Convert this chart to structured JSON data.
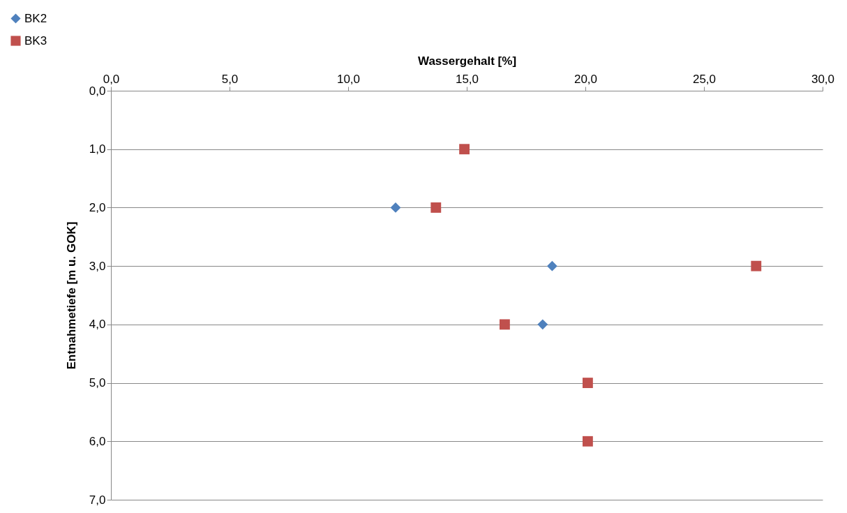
{
  "chart_data": {
    "type": "scatter",
    "xlabel": "Wassergehalt [%]",
    "ylabel": "Entnahmetiefe [m u. GOK]",
    "xlim": [
      0,
      30
    ],
    "xticks": [
      {
        "value": 0,
        "label": "0,0"
      },
      {
        "value": 5,
        "label": "5,0"
      },
      {
        "value": 10,
        "label": "10,0"
      },
      {
        "value": 15,
        "label": "15,0"
      },
      {
        "value": 20,
        "label": "20,0"
      },
      {
        "value": 25,
        "label": "25,0"
      },
      {
        "value": 30,
        "label": "30,0"
      }
    ],
    "ylim": [
      7,
      0
    ],
    "yticks": [
      {
        "value": 0,
        "label": "0,0"
      },
      {
        "value": 1,
        "label": "1,0"
      },
      {
        "value": 2,
        "label": "2,0"
      },
      {
        "value": 3,
        "label": "3,0"
      },
      {
        "value": 4,
        "label": "4,0"
      },
      {
        "value": 5,
        "label": "5,0"
      },
      {
        "value": 6,
        "label": "6,0"
      },
      {
        "value": 7,
        "label": "7,0"
      }
    ],
    "grid": "y",
    "legend": "top left",
    "series": [
      {
        "name": "BK2",
        "color": "#4f81bd",
        "marker": "diamond",
        "x": [
          12.0,
          18.6,
          18.2
        ],
        "values": [
          2,
          3,
          4
        ]
      },
      {
        "name": "BK3",
        "color": "#c0504d",
        "marker": "square",
        "x": [
          14.9,
          13.7,
          27.2,
          16.6,
          20.1,
          20.1
        ],
        "values": [
          1,
          2,
          3,
          4,
          5,
          6
        ]
      }
    ]
  }
}
